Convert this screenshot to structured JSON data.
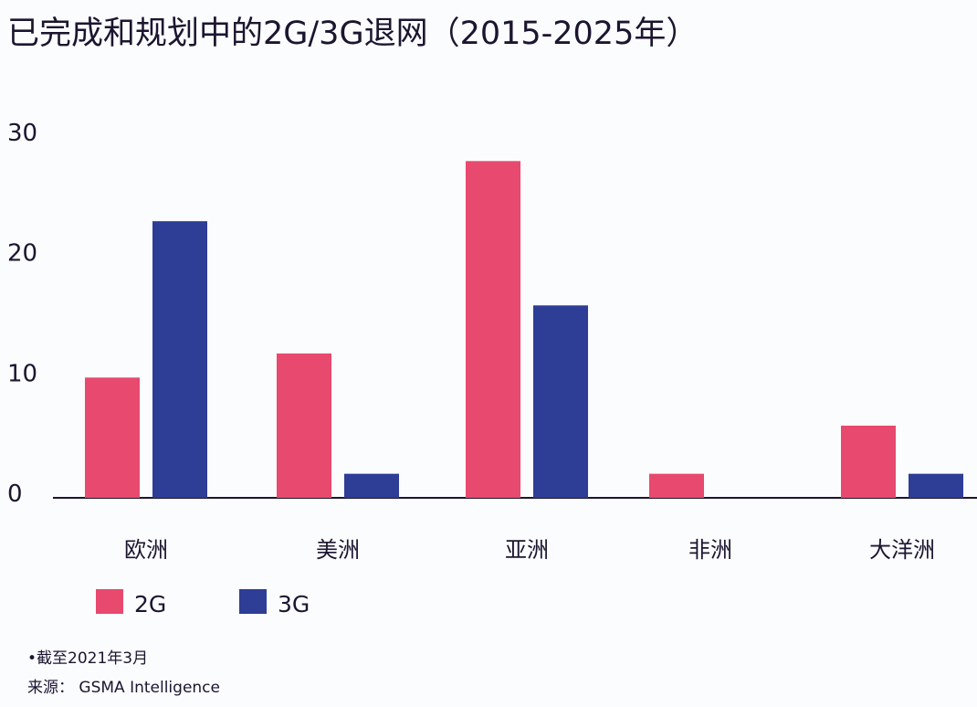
{
  "chart_data": {
    "type": "bar",
    "title": "已完成和规划中的2G/3G退网（2015-2025年）",
    "categories": [
      "欧洲",
      "美洲",
      "亚洲",
      "非洲",
      "大洋洲"
    ],
    "series": [
      {
        "name": "2G",
        "values": [
          10,
          12,
          28,
          2,
          6
        ],
        "color": "#e8496e"
      },
      {
        "name": "3G",
        "values": [
          23,
          2,
          16,
          0,
          2
        ],
        "color": "#2e3d96"
      }
    ],
    "yticks": [
      0,
      10,
      20,
      30
    ],
    "ylim": [
      0,
      30
    ],
    "grid": false,
    "legend": "bottom-left",
    "xlabel": "",
    "ylabel": ""
  },
  "footnote": "•截至2021年3月",
  "source": "来源：  GSMA Intelligence"
}
